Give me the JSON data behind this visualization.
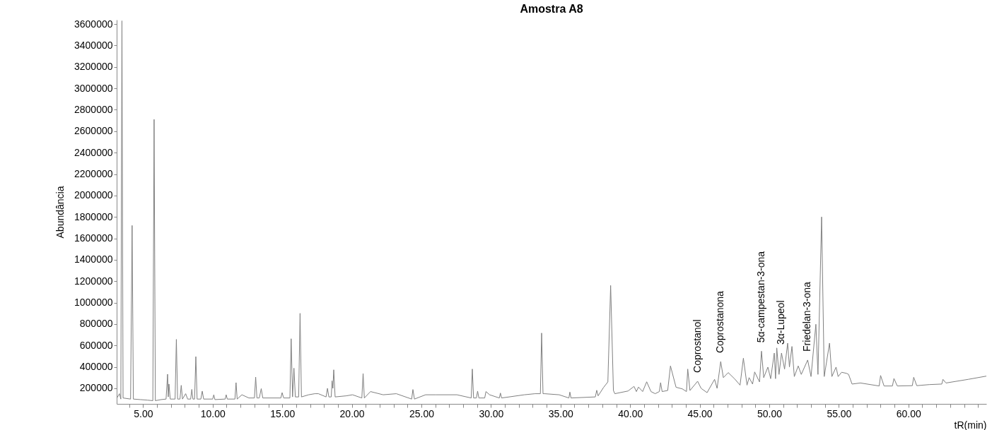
{
  "chart_data": {
    "type": "line",
    "title": "Amostra A8",
    "xlabel": "tR(min)",
    "ylabel": "Abundância",
    "xlim": [
      3.1,
      65.6
    ],
    "xticks": [
      {
        "value": 4,
        "label": null
      },
      {
        "value": 5,
        "label": "5.00"
      },
      {
        "value": 6,
        "label": null
      },
      {
        "value": 7,
        "label": null
      },
      {
        "value": 8,
        "label": null
      },
      {
        "value": 9,
        "label": null
      },
      {
        "value": 10,
        "label": "10.00"
      },
      {
        "value": 11,
        "label": null
      },
      {
        "value": 12,
        "label": null
      },
      {
        "value": 13,
        "label": null
      },
      {
        "value": 14,
        "label": null
      },
      {
        "value": 15,
        "label": "15.00"
      },
      {
        "value": 16,
        "label": null
      },
      {
        "value": 17,
        "label": null
      },
      {
        "value": 18,
        "label": null
      },
      {
        "value": 19,
        "label": null
      },
      {
        "value": 20,
        "label": "20.00"
      },
      {
        "value": 21,
        "label": null
      },
      {
        "value": 22,
        "label": null
      },
      {
        "value": 23,
        "label": null
      },
      {
        "value": 24,
        "label": null
      },
      {
        "value": 25,
        "label": "25.00"
      },
      {
        "value": 26,
        "label": null
      },
      {
        "value": 27,
        "label": null
      },
      {
        "value": 28,
        "label": null
      },
      {
        "value": 29,
        "label": null
      },
      {
        "value": 30,
        "label": "30.00"
      },
      {
        "value": 31,
        "label": null
      },
      {
        "value": 32,
        "label": null
      },
      {
        "value": 33,
        "label": null
      },
      {
        "value": 34,
        "label": null
      },
      {
        "value": 35,
        "label": "35.00"
      },
      {
        "value": 36,
        "label": null
      },
      {
        "value": 37,
        "label": null
      },
      {
        "value": 38,
        "label": null
      },
      {
        "value": 39,
        "label": null
      },
      {
        "value": 40,
        "label": "40.00"
      },
      {
        "value": 41,
        "label": null
      },
      {
        "value": 42,
        "label": null
      },
      {
        "value": 43,
        "label": null
      },
      {
        "value": 44,
        "label": null
      },
      {
        "value": 45,
        "label": "45.00"
      },
      {
        "value": 46,
        "label": null
      },
      {
        "value": 47,
        "label": null
      },
      {
        "value": 48,
        "label": null
      },
      {
        "value": 49,
        "label": null
      },
      {
        "value": 50,
        "label": "50.00"
      },
      {
        "value": 51,
        "label": null
      },
      {
        "value": 52,
        "label": null
      },
      {
        "value": 53,
        "label": null
      },
      {
        "value": 54,
        "label": null
      },
      {
        "value": 55,
        "label": "55.00"
      },
      {
        "value": 56,
        "label": null
      },
      {
        "value": 57,
        "label": null
      },
      {
        "value": 58,
        "label": null
      },
      {
        "value": 59,
        "label": null
      },
      {
        "value": 60,
        "label": "60.00"
      },
      {
        "value": 61,
        "label": null
      },
      {
        "value": 62,
        "label": null
      },
      {
        "value": 63,
        "label": null
      },
      {
        "value": 64,
        "label": null
      },
      {
        "value": 65,
        "label": null
      }
    ],
    "ylim": [
      55000,
      3640000
    ],
    "yticks": [
      200000,
      400000,
      600000,
      800000,
      1000000,
      1200000,
      1400000,
      1600000,
      1800000,
      2000000,
      2200000,
      2400000,
      2600000,
      2800000,
      3000000,
      3200000,
      3400000,
      3600000
    ],
    "grid": false,
    "legend": false,
    "marker": "none",
    "line_style": "solid",
    "annotations": [
      {
        "text": "Coprostanol",
        "x": 44.85,
        "y": 266000
      },
      {
        "text": "Coprostanona",
        "x": 46.51,
        "y": 450000
      },
      {
        "text": "5α-campestan-3-ona",
        "x": 49.44,
        "y": 547000
      },
      {
        "text": "3α-Lupeol",
        "x": 50.88,
        "y": 529000
      },
      {
        "text": "Friedelan-3-ona",
        "x": 52.76,
        "y": 464000
      }
    ],
    "series": [
      {
        "color": "#808080",
        "x": [
          3.12,
          3.3,
          3.4,
          3.48,
          3.56,
          4.1,
          4.21,
          4.3,
          4.8,
          5.3,
          5.7,
          5.79,
          5.88,
          6.3,
          6.65,
          6.76,
          6.81,
          6.86,
          6.95,
          7.3,
          7.39,
          7.48,
          7.65,
          7.74,
          7.83,
          8.06,
          8.2,
          8.42,
          8.5,
          8.58,
          8.7,
          8.79,
          8.88,
          9.15,
          9.25,
          9.35,
          10.0,
          10.08,
          10.16,
          10.9,
          10.97,
          11.05,
          11.6,
          11.68,
          11.76,
          12.1,
          12.6,
          13.0,
          13.09,
          13.18,
          13.35,
          13.49,
          13.6,
          14.9,
          14.99,
          15.1,
          15.55,
          15.64,
          15.74,
          15.84,
          15.94,
          16.18,
          16.28,
          16.38,
          16.9,
          17.34,
          17.6,
          18.15,
          18.25,
          18.35,
          18.52,
          18.58,
          18.64,
          18.7,
          18.8,
          19.6,
          20.05,
          20.72,
          20.81,
          20.9,
          21.34,
          22.25,
          23.2,
          24.3,
          24.39,
          24.5,
          25.3,
          26.05,
          27.55,
          28.58,
          28.66,
          28.75,
          28.95,
          29.04,
          29.13,
          29.55,
          29.64,
          29.9,
          30.6,
          30.68,
          30.76,
          32.4,
          33.17,
          33.55,
          33.64,
          33.74,
          33.85,
          34.9,
          35.6,
          35.67,
          35.75,
          37.5,
          37.6,
          37.7,
          38.1,
          38.4,
          38.6,
          38.8,
          38.9,
          39.85,
          40.28,
          40.45,
          40.6,
          40.9,
          41.19,
          41.5,
          41.8,
          42.1,
          42.19,
          42.3,
          42.7,
          42.9,
          43.3,
          43.75,
          44.05,
          44.14,
          44.3,
          44.85,
          45.1,
          45.53,
          46.07,
          46.25,
          46.51,
          46.7,
          47.05,
          47.5,
          47.9,
          48.14,
          48.4,
          48.55,
          48.8,
          48.95,
          49.3,
          49.44,
          49.6,
          49.9,
          50.1,
          50.36,
          50.45,
          50.54,
          50.7,
          50.88,
          51.1,
          51.32,
          51.45,
          51.63,
          51.8,
          52.08,
          52.3,
          52.76,
          53.0,
          53.35,
          53.5,
          53.76,
          53.95,
          54.33,
          54.5,
          54.8,
          54.95,
          55.2,
          55.55,
          55.7,
          55.95,
          56.55,
          57.9,
          58.0,
          58.25,
          58.85,
          58.96,
          59.2,
          60.28,
          60.38,
          60.6,
          61.5,
          62.4,
          62.48,
          62.7,
          64.3,
          65.6
        ],
        "values": [
          110000,
          150000,
          100000,
          3630000,
          110000,
          100000,
          1720000,
          100000,
          95000,
          90000,
          85000,
          2710000,
          85000,
          95000,
          100000,
          332000,
          120000,
          240000,
          100000,
          100000,
          657000,
          100000,
          100000,
          228000,
          100000,
          150000,
          100000,
          100000,
          190000,
          100000,
          100000,
          496000,
          100000,
          100000,
          174000,
          100000,
          100000,
          140000,
          95000,
          100000,
          140000,
          100000,
          100000,
          253000,
          100000,
          140000,
          110000,
          110000,
          305000,
          110000,
          110000,
          197000,
          110000,
          110000,
          160000,
          110000,
          110000,
          663000,
          120000,
          388000,
          120000,
          120000,
          900000,
          120000,
          140000,
          150000,
          150000,
          120000,
          200000,
          120000,
          120000,
          270000,
          200000,
          373000,
          120000,
          130000,
          140000,
          110000,
          338000,
          110000,
          170000,
          140000,
          150000,
          100000,
          189000,
          100000,
          140000,
          140000,
          140000,
          110000,
          380000,
          110000,
          110000,
          174000,
          110000,
          110000,
          170000,
          140000,
          110000,
          156000,
          110000,
          140000,
          150000,
          150000,
          716000,
          150000,
          150000,
          140000,
          110000,
          165000,
          110000,
          120000,
          182000,
          130000,
          210000,
          260000,
          1160000,
          180000,
          150000,
          175000,
          218000,
          170000,
          212000,
          170000,
          261000,
          170000,
          150000,
          170000,
          253000,
          170000,
          180000,
          409000,
          210000,
          195000,
          170000,
          380000,
          180000,
          266000,
          200000,
          160000,
          284000,
          200000,
          450000,
          300000,
          347000,
          290000,
          230000,
          481000,
          230000,
          300000,
          240000,
          353000,
          260000,
          547000,
          300000,
          398000,
          290000,
          529000,
          290000,
          577000,
          330000,
          529000,
          380000,
          622000,
          400000,
          591000,
          310000,
          409000,
          330000,
          464000,
          310000,
          798000,
          330000,
          1800000,
          310000,
          622000,
          310000,
          398000,
          310000,
          350000,
          340000,
          330000,
          240000,
          250000,
          222000,
          320000,
          222000,
          222000,
          292000,
          222000,
          225000,
          303000,
          225000,
          235000,
          240000,
          284000,
          250000,
          284000,
          314000
        ]
      }
    ]
  }
}
